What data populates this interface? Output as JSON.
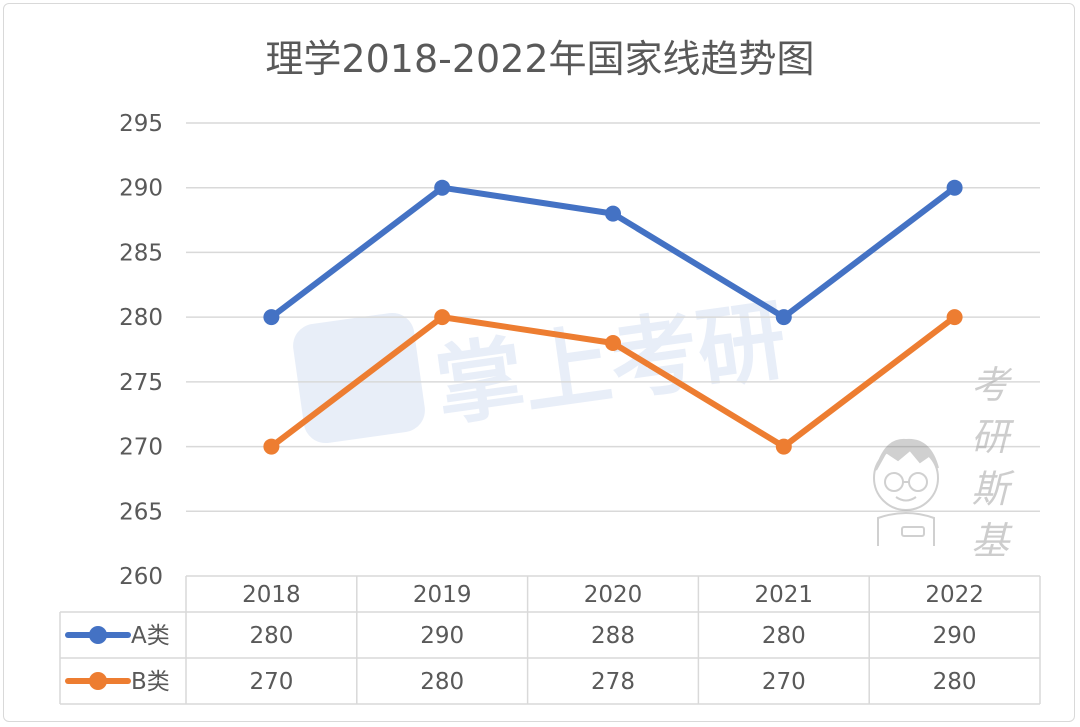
{
  "chart_data": {
    "type": "line",
    "title": "理学2018-2022年国家线趋势图",
    "categories": [
      "2018",
      "2019",
      "2020",
      "2021",
      "2022"
    ],
    "series": [
      {
        "name": "A类",
        "values": [
          280,
          290,
          288,
          280,
          290
        ],
        "color": "#4472c4"
      },
      {
        "name": "B类",
        "values": [
          270,
          280,
          278,
          270,
          280
        ],
        "color": "#ed7d31"
      }
    ],
    "ylim": [
      260,
      295
    ],
    "yticks": [
      260,
      265,
      270,
      275,
      280,
      285,
      290,
      295
    ],
    "grid": true,
    "legend": "data-table"
  },
  "watermark": {
    "logo_text": "掌上考研",
    "brand_text": [
      "考",
      "研",
      "斯",
      "基"
    ]
  }
}
